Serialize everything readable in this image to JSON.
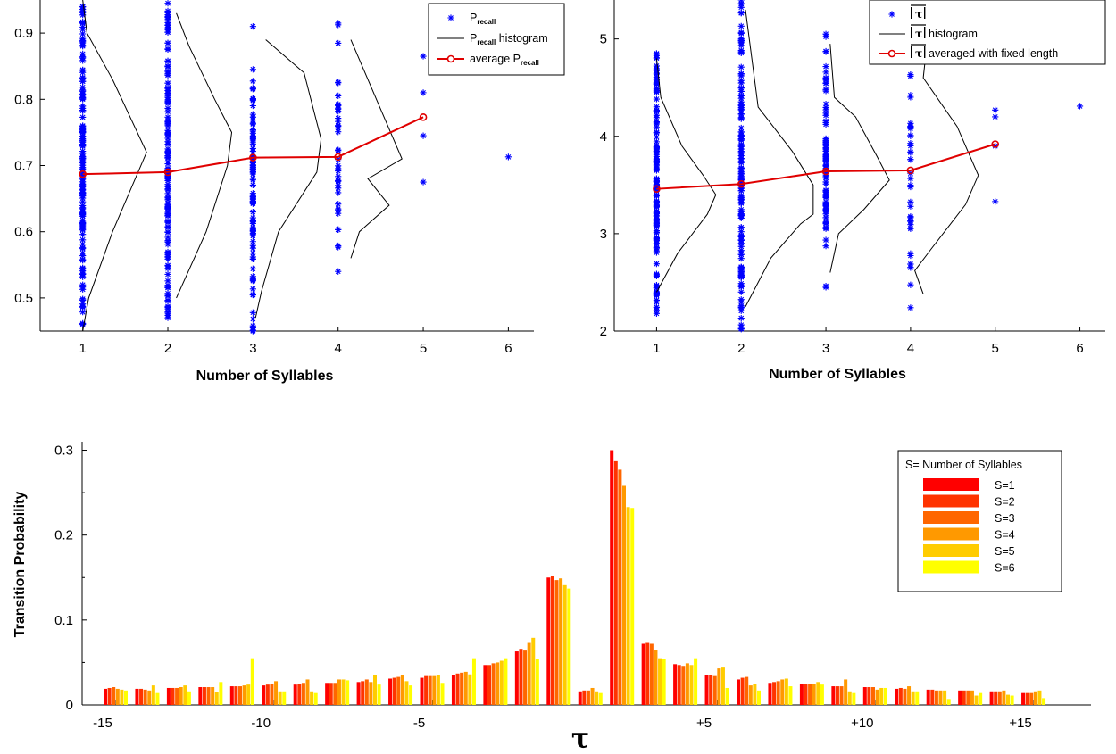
{
  "chart_data": [
    {
      "type": "scatter",
      "xlabel": "Number of Syllables",
      "ylabel": "",
      "xlim": [
        0.5,
        6.3
      ],
      "ylim": [
        0.45,
        0.95
      ],
      "x_ticks": [
        "1",
        "2",
        "3",
        "4",
        "5",
        "6"
      ],
      "y_ticks": [
        "0.5",
        "0.6",
        "0.7",
        "0.8",
        "0.9"
      ],
      "legend_placement": "top-right",
      "legend": [
        {
          "base": "P",
          "sub": "recall",
          "suffix": ""
        },
        {
          "base": "P",
          "sub": "recall",
          "suffix": " histogram"
        },
        {
          "base": "average P",
          "sub": "recall",
          "suffix": ""
        }
      ],
      "scatter_columns": [
        {
          "x": 1,
          "min": 0.46,
          "max": 0.94,
          "density": "high"
        },
        {
          "x": 2,
          "min": 0.47,
          "max": 0.945,
          "density": "high"
        },
        {
          "x": 3,
          "min": 0.45,
          "max": 0.91,
          "density": "medium"
        },
        {
          "x": 4,
          "min": 0.54,
          "max": 0.915,
          "density": "low"
        }
      ],
      "sparse_points": [
        {
          "x": 5,
          "y": 0.865
        },
        {
          "x": 5,
          "y": 0.81
        },
        {
          "x": 5,
          "y": 0.745
        },
        {
          "x": 5,
          "y": 0.675
        },
        {
          "x": 6,
          "y": 0.713
        }
      ],
      "histograms": [
        {
          "x": 1,
          "points": [
            [
              1.0,
              0.45
            ],
            [
              1.07,
              0.5
            ],
            [
              1.35,
              0.6
            ],
            [
              1.75,
              0.72
            ],
            [
              1.35,
              0.83
            ],
            [
              1.05,
              0.9
            ],
            [
              1.0,
              0.95
            ]
          ]
        },
        {
          "x": 2,
          "points": [
            [
              2.1,
              0.5
            ],
            [
              2.45,
              0.6
            ],
            [
              2.7,
              0.7
            ],
            [
              2.75,
              0.75
            ],
            [
              2.55,
              0.8
            ],
            [
              2.25,
              0.88
            ],
            [
              2.1,
              0.93
            ]
          ]
        },
        {
          "x": 3,
          "points": [
            [
              3.03,
              0.47
            ],
            [
              3.1,
              0.51
            ],
            [
              3.3,
              0.6
            ],
            [
              3.75,
              0.69
            ],
            [
              3.8,
              0.74
            ],
            [
              3.6,
              0.84
            ],
            [
              3.15,
              0.89
            ]
          ]
        },
        {
          "x": 4,
          "points": [
            [
              4.15,
              0.56
            ],
            [
              4.25,
              0.6
            ],
            [
              4.6,
              0.64
            ],
            [
              4.35,
              0.68
            ],
            [
              4.75,
              0.71
            ],
            [
              4.35,
              0.83
            ],
            [
              4.15,
              0.89
            ]
          ]
        }
      ],
      "series": [
        {
          "name": "average P recall",
          "x": [
            1,
            2,
            3,
            4,
            5
          ],
          "y": [
            0.687,
            0.69,
            0.712,
            0.713,
            0.773
          ]
        }
      ]
    },
    {
      "type": "scatter",
      "xlabel": "Number of Syllables",
      "ylabel": "",
      "xlim": [
        0.5,
        6.3
      ],
      "ylim": [
        2.0,
        5.4
      ],
      "x_ticks": [
        "1",
        "2",
        "3",
        "4",
        "5",
        "6"
      ],
      "y_ticks": [
        "2",
        "3",
        "4",
        "5"
      ],
      "legend_placement": "top-right",
      "legend": [
        {
          "base": "τ",
          "suffix": ""
        },
        {
          "base": "τ",
          "suffix": "   histogram"
        },
        {
          "base": "τ",
          "suffix": " averaged with fixed length"
        }
      ],
      "scatter_columns": [
        {
          "x": 1,
          "min": 2.18,
          "max": 4.85,
          "density": "high"
        },
        {
          "x": 2,
          "min": 2.02,
          "max": 5.4,
          "density": "high"
        },
        {
          "x": 3,
          "min": 2.45,
          "max": 5.05,
          "density": "medium"
        },
        {
          "x": 4,
          "min": 2.24,
          "max": 4.85,
          "density": "low"
        }
      ],
      "sparse_points": [
        {
          "x": 5,
          "y": 4.27
        },
        {
          "x": 5,
          "y": 4.2
        },
        {
          "x": 5,
          "y": 3.9
        },
        {
          "x": 5,
          "y": 3.33
        },
        {
          "x": 6,
          "y": 4.31
        }
      ],
      "histograms": [
        {
          "x": 1,
          "points": [
            [
              1.0,
              2.4
            ],
            [
              1.25,
              2.8
            ],
            [
              1.6,
              3.2
            ],
            [
              1.7,
              3.4
            ],
            [
              1.55,
              3.6
            ],
            [
              1.3,
              3.9
            ],
            [
              1.05,
              4.4
            ],
            [
              1.0,
              4.8
            ]
          ]
        },
        {
          "x": 2,
          "points": [
            [
              2.05,
              2.25
            ],
            [
              2.35,
              2.75
            ],
            [
              2.7,
              3.1
            ],
            [
              2.85,
              3.2
            ],
            [
              2.85,
              3.5
            ],
            [
              2.6,
              3.85
            ],
            [
              2.2,
              4.3
            ],
            [
              2.05,
              5.3
            ]
          ]
        },
        {
          "x": 3,
          "points": [
            [
              3.05,
              2.6
            ],
            [
              3.15,
              3.0
            ],
            [
              3.45,
              3.25
            ],
            [
              3.75,
              3.55
            ],
            [
              3.6,
              3.8
            ],
            [
              3.35,
              4.2
            ],
            [
              3.1,
              4.4
            ],
            [
              3.05,
              4.95
            ]
          ]
        },
        {
          "x": 4,
          "points": [
            [
              4.15,
              2.38
            ],
            [
              4.05,
              2.62
            ],
            [
              4.25,
              2.85
            ],
            [
              4.65,
              3.3
            ],
            [
              4.8,
              3.6
            ],
            [
              4.55,
              4.1
            ],
            [
              4.15,
              4.6
            ],
            [
              4.2,
              5.0
            ]
          ]
        }
      ],
      "series": [
        {
          "name": "τ averaged with fixed length",
          "x": [
            1,
            2,
            3,
            4,
            5
          ],
          "y": [
            3.46,
            3.51,
            3.64,
            3.65,
            3.92
          ]
        }
      ]
    },
    {
      "type": "bar",
      "xlabel": "τ",
      "ylabel": "Transition Probability",
      "ylim": [
        0,
        0.31
      ],
      "x_ticks": [
        "-15",
        "-10",
        "-5",
        "+5",
        "+10",
        "+15"
      ],
      "x_tick_values": [
        -15,
        -10,
        -5,
        5,
        10,
        15
      ],
      "y_ticks": [
        "0",
        "0.1",
        "0.2",
        "0.3"
      ],
      "legend_title": "S= Number of Syllables",
      "legend_placement": "right",
      "categories": [
        -15,
        -14,
        -13,
        -12,
        -11,
        -10,
        -9,
        -8,
        -7,
        -6,
        -5,
        -4,
        -3,
        -2,
        -1,
        1,
        2,
        3,
        4,
        5,
        6,
        7,
        8,
        9,
        10,
        11,
        12,
        13,
        14,
        15
      ],
      "series": [
        {
          "name": "S=1",
          "color": "#ff0000",
          "values": [
            0.019,
            0.019,
            0.02,
            0.021,
            0.022,
            0.023,
            0.024,
            0.026,
            0.027,
            0.031,
            0.032,
            0.035,
            0.047,
            0.063,
            0.15,
            0.016,
            0.3,
            0.072,
            0.048,
            0.035,
            0.03,
            0.026,
            0.025,
            0.022,
            0.021,
            0.019,
            0.018,
            0.017,
            0.016,
            0.014
          ]
        },
        {
          "name": "S=2",
          "color": "#ff3300",
          "values": [
            0.02,
            0.019,
            0.02,
            0.021,
            0.022,
            0.024,
            0.025,
            0.026,
            0.028,
            0.032,
            0.034,
            0.037,
            0.047,
            0.066,
            0.152,
            0.017,
            0.287,
            0.073,
            0.047,
            0.035,
            0.032,
            0.027,
            0.025,
            0.022,
            0.021,
            0.02,
            0.018,
            0.017,
            0.016,
            0.014
          ]
        },
        {
          "name": "S=3",
          "color": "#ff6600",
          "values": [
            0.021,
            0.018,
            0.02,
            0.021,
            0.022,
            0.025,
            0.026,
            0.026,
            0.03,
            0.033,
            0.034,
            0.038,
            0.049,
            0.064,
            0.147,
            0.017,
            0.277,
            0.072,
            0.046,
            0.034,
            0.033,
            0.028,
            0.025,
            0.022,
            0.021,
            0.019,
            0.017,
            0.017,
            0.016,
            0.014
          ]
        },
        {
          "name": "S=4",
          "color": "#ff9900",
          "values": [
            0.019,
            0.017,
            0.021,
            0.021,
            0.023,
            0.028,
            0.03,
            0.03,
            0.027,
            0.035,
            0.034,
            0.039,
            0.05,
            0.073,
            0.149,
            0.02,
            0.258,
            0.065,
            0.049,
            0.043,
            0.023,
            0.03,
            0.025,
            0.03,
            0.018,
            0.022,
            0.017,
            0.017,
            0.017,
            0.016
          ]
        },
        {
          "name": "S=5",
          "color": "#ffcc00",
          "values": [
            0.018,
            0.023,
            0.023,
            0.015,
            0.024,
            0.016,
            0.016,
            0.03,
            0.035,
            0.028,
            0.035,
            0.036,
            0.052,
            0.079,
            0.141,
            0.016,
            0.233,
            0.055,
            0.047,
            0.044,
            0.025,
            0.031,
            0.027,
            0.016,
            0.02,
            0.016,
            0.017,
            0.011,
            0.012,
            0.017
          ]
        },
        {
          "name": "S=6",
          "color": "#ffff00",
          "values": [
            0.017,
            0.014,
            0.016,
            0.027,
            0.055,
            0.016,
            0.014,
            0.029,
            0.024,
            0.023,
            0.026,
            0.055,
            0.055,
            0.054,
            0.137,
            0.014,
            0.232,
            0.054,
            0.055,
            0.02,
            0.017,
            0.022,
            0.024,
            0.014,
            0.02,
            0.016,
            0.007,
            0.014,
            0.011,
            0.008
          ]
        }
      ]
    }
  ]
}
